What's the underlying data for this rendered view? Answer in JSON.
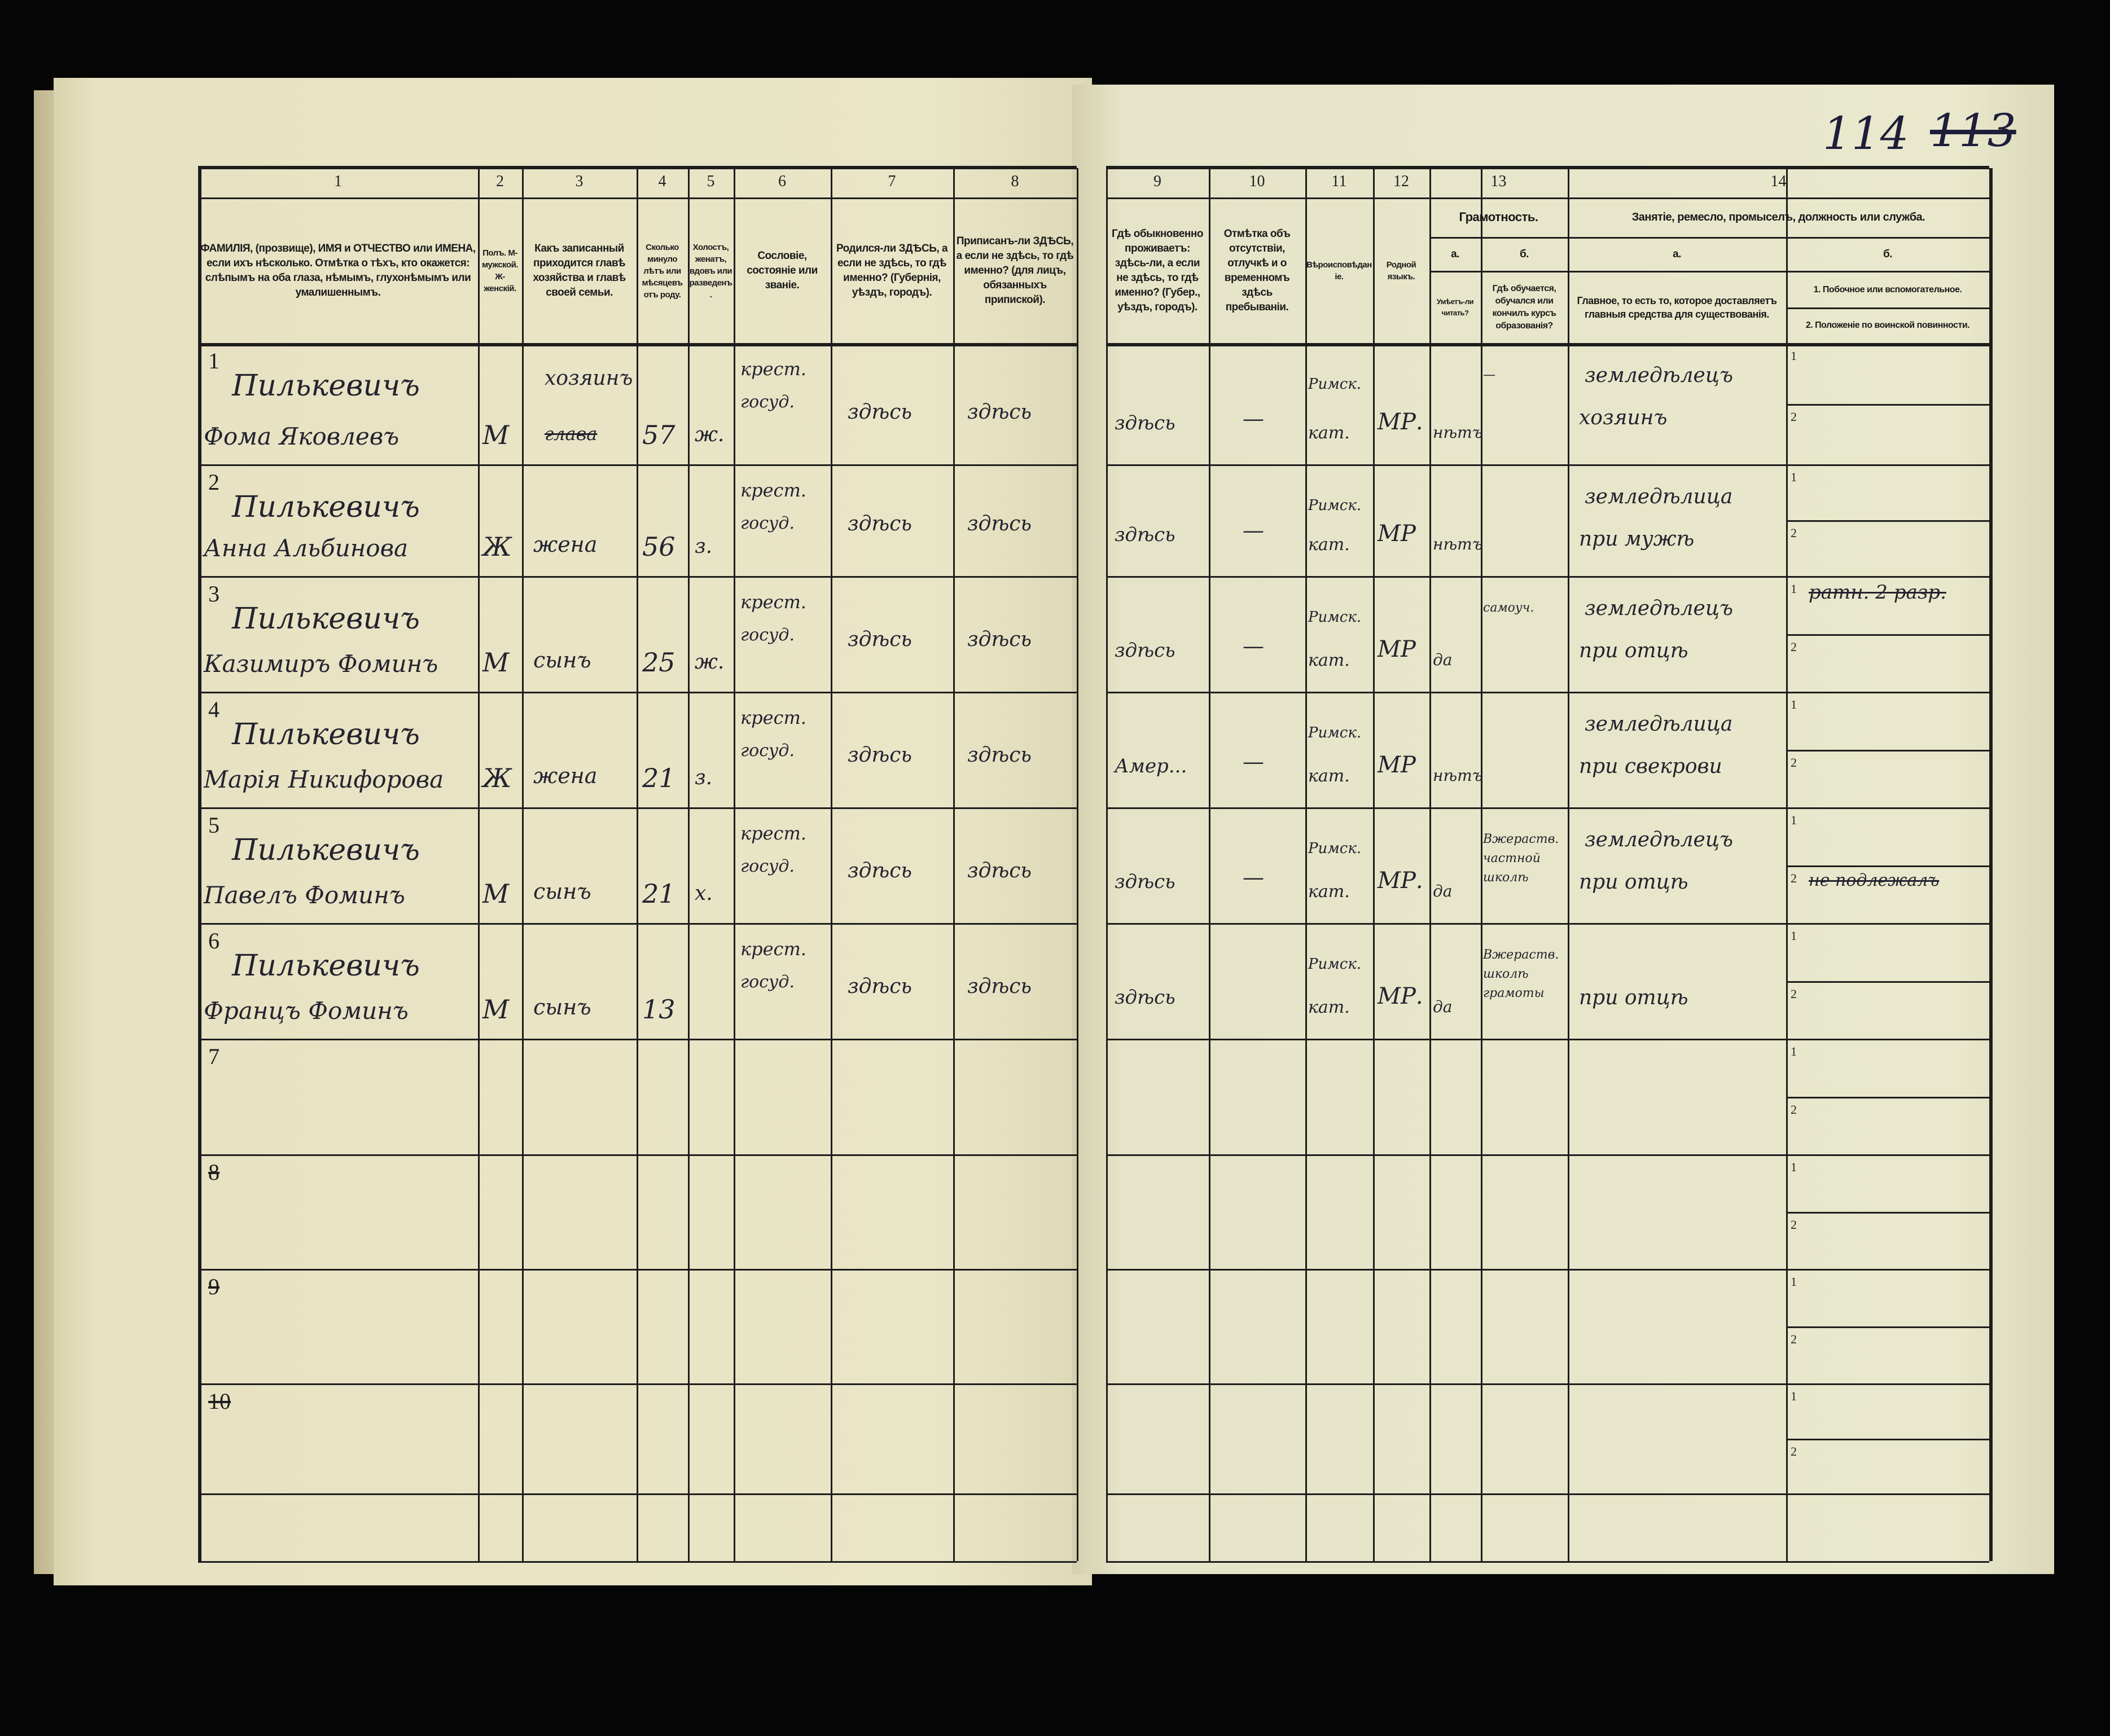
{
  "page_numbers": {
    "current": "114",
    "previous": "113"
  },
  "header": {
    "columns": [
      {
        "num": "1",
        "text": "ФАМИЛІЯ, (прозвище), ИМЯ и ОТЧЕСТВО или ИМЕНА, если ихъ нѣсколько. Отмѣтка о тѣхъ, кто окажется: слѣпымъ на оба глаза, нѣмымъ, глухонѣмымъ или умалишеннымъ."
      },
      {
        "num": "2",
        "text": "Полъ. М-мужской. Ж-женскій."
      },
      {
        "num": "3",
        "text": "Какъ записанный приходится главѣ хозяйства и главѣ своей семьи."
      },
      {
        "num": "4",
        "text": "Сколько минуло лѣтъ или мѣсяцевъ отъ роду."
      },
      {
        "num": "5",
        "text": "Холостъ, женатъ, вдовъ или разведенъ."
      },
      {
        "num": "6",
        "text": "Сословіе, состояніе или званіе."
      },
      {
        "num": "7",
        "text": "Родился-ли ЗДѢСЬ, а если не здѣсь, то гдѣ именно? (Губернія, уѣздъ, городъ)."
      },
      {
        "num": "8",
        "text": "Приписанъ-ли ЗДѢСЬ, а если не здѣсь, то гдѣ именно? (для лицъ, обязанныхъ припиской)."
      },
      {
        "num": "9",
        "text": "Гдѣ обыкновенно проживаетъ: здѣсь-ли, а если не здѣсь, то гдѣ именно? (Губер., уѣздъ, городъ)."
      },
      {
        "num": "10",
        "text": "Отмѣтка объ отсутствіи, отлучкѣ и о временномъ здѣсь пребываніи."
      },
      {
        "num": "11",
        "text": "Вѣроисповѣданіе."
      },
      {
        "num": "12",
        "text": "Родной языкъ."
      }
    ],
    "literacy": {
      "num": "13",
      "title": "Грамотность.",
      "a_letter": "а.",
      "a_text": "Умѣетъ-ли читать?",
      "b_letter": "б.",
      "b_text": "Гдѣ обучается, обучался или кончилъ курсъ образованія?"
    },
    "occupation": {
      "num": "14",
      "title": "Занятіе, ремесло, промыселъ, должность или служба.",
      "a_letter": "а.",
      "a_text": "Главное, то есть то, которое доставляетъ главныя средства для существованія.",
      "b_letter": "б.",
      "b1_text": "1. Побочное или вспомогательное.",
      "b2_text": "2. Положеніе по воинской повинности."
    }
  },
  "rows": [
    {
      "num": "1",
      "surname": "Пилькевичъ",
      "given": "Фома Яковлевъ",
      "sex": "М",
      "relation": "хозяинъ",
      "relation_struck": "глава",
      "age": "57",
      "marital": "ж.",
      "estate1": "крест.",
      "estate2": "госуд.",
      "born": "здѣсь",
      "registered": "здѣсь",
      "residence": "здѣсь",
      "absence": "—",
      "religion1": "Римск.",
      "religion2": "кат.",
      "language": "МР.",
      "reads": "нѣтъ",
      "school": "—",
      "occ1": "земледѣлецъ",
      "occ2": "хозяинъ",
      "b1": "",
      "b2": "",
      "b1_struck": false,
      "b2_struck": false
    },
    {
      "num": "2",
      "surname": "Пилькевичъ",
      "given": "Анна Альбинова",
      "sex": "Ж",
      "relation": "жена",
      "relation_struck": "",
      "age": "56",
      "marital": "з.",
      "estate1": "крест.",
      "estate2": "госуд.",
      "born": "здѣсь",
      "registered": "здѣсь",
      "residence": "здѣсь",
      "absence": "—",
      "religion1": "Римск.",
      "religion2": "кат.",
      "language": "МР",
      "reads": "нѣтъ",
      "school": "",
      "occ1": "земледѣлица",
      "occ2": "при мужѣ",
      "b1": "",
      "b2": "",
      "b1_struck": false,
      "b2_struck": false
    },
    {
      "num": "3",
      "surname": "Пилькевичъ",
      "given": "Казимиръ Фоминъ",
      "sex": "М",
      "relation": "сынъ",
      "relation_struck": "",
      "age": "25",
      "marital": "ж.",
      "estate1": "крест.",
      "estate2": "госуд.",
      "born": "здѣсь",
      "registered": "здѣсь",
      "residence": "здѣсь",
      "absence": "—",
      "religion1": "Римск.",
      "religion2": "кат.",
      "language": "МР",
      "reads": "да",
      "school": "самоуч.",
      "occ1": "земледѣлецъ",
      "occ2": "при отцѣ",
      "b1": "ратн. 2 разр.",
      "b2": "",
      "b1_struck": true,
      "b2_struck": false
    },
    {
      "num": "4",
      "surname": "Пилькевичъ",
      "given": "Марія Никифорова",
      "sex": "Ж",
      "relation": "жена",
      "relation_struck": "",
      "age": "21",
      "marital": "з.",
      "estate1": "крест.",
      "estate2": "госуд.",
      "born": "здѣсь",
      "registered": "здѣсь",
      "residence": "Амер...",
      "absence": "—",
      "religion1": "Римск.",
      "religion2": "кат.",
      "language": "МР",
      "reads": "нѣтъ",
      "school": "",
      "occ1": "земледѣлица",
      "occ2": "при свекрови",
      "b1": "",
      "b2": "",
      "b1_struck": false,
      "b2_struck": false
    },
    {
      "num": "5",
      "surname": "Пилькевичъ",
      "given": "Павелъ Фоминъ",
      "sex": "М",
      "relation": "сынъ",
      "relation_struck": "",
      "age": "21",
      "marital": "х.",
      "estate1": "крест.",
      "estate2": "госуд.",
      "born": "здѣсь",
      "registered": "здѣсь",
      "residence": "здѣсь",
      "absence": "—",
      "religion1": "Римск.",
      "religion2": "кат.",
      "language": "МР.",
      "reads": "да",
      "school": "Вжераств. частной школѣ",
      "occ1": "земледѣлецъ",
      "occ2": "при отцѣ",
      "b1": "",
      "b2": "не подлежалъ",
      "b1_struck": false,
      "b2_struck": true
    },
    {
      "num": "6",
      "surname": "Пилькевичъ",
      "given": "Францъ Фоминъ",
      "sex": "М",
      "relation": "сынъ",
      "relation_struck": "",
      "age": "13",
      "marital": "",
      "estate1": "крест.",
      "estate2": "госуд.",
      "born": "здѣсь",
      "registered": "здѣсь",
      "residence": "здѣсь",
      "absence": "",
      "religion1": "Римск.",
      "religion2": "кат.",
      "language": "МР.",
      "reads": "да",
      "school": "Вжераств. школѣ грамоты",
      "occ1": "",
      "occ2": "при отцѣ",
      "b1": "",
      "b2": "",
      "b1_struck": false,
      "b2_struck": false
    }
  ],
  "empty_rows": [
    {
      "num": "7",
      "struck": false
    },
    {
      "num": "8",
      "struck": true
    },
    {
      "num": "9",
      "struck": true
    },
    {
      "num": "10",
      "struck": true
    }
  ],
  "sub_labels": {
    "one": "1",
    "two": "2"
  }
}
